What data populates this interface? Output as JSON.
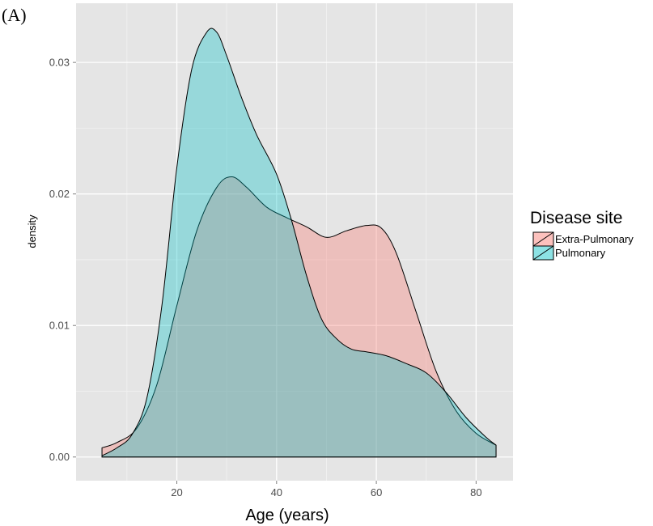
{
  "panel_label": "(A)",
  "chart_data": {
    "type": "area",
    "title": "",
    "xlabel": "Age (years)",
    "ylabel": "density",
    "xlim": [
      -0.2,
      87.4
    ],
    "ylim": [
      -0.0018,
      0.0345
    ],
    "x_ticks": [
      20,
      40,
      60,
      80
    ],
    "x_tick_labels": [
      "20",
      "40",
      "60",
      "80"
    ],
    "y_ticks": [
      0.0,
      0.01,
      0.02,
      0.03
    ],
    "y_tick_labels": [
      "0.00",
      "0.01",
      "0.02",
      "0.03"
    ],
    "grid": true,
    "legend": {
      "title": "Disease site",
      "position": "right"
    },
    "series": [
      {
        "name": "Extra-Pulmonary",
        "color": "#f8766d",
        "x": [
          5,
          8,
          12,
          16,
          20,
          24,
          28,
          31,
          34,
          38,
          42,
          46,
          50,
          54,
          58,
          61,
          64,
          68,
          72,
          76,
          80,
          84
        ],
        "y": [
          0.0007,
          0.0011,
          0.0022,
          0.0055,
          0.0115,
          0.0172,
          0.0205,
          0.0213,
          0.0205,
          0.019,
          0.0182,
          0.0175,
          0.0167,
          0.0172,
          0.0176,
          0.0174,
          0.0155,
          0.011,
          0.0065,
          0.0035,
          0.0018,
          0.0009
        ]
      },
      {
        "name": "Pulmonary",
        "color": "#00bfc4",
        "x": [
          5,
          8,
          11,
          14,
          17,
          20,
          23,
          26,
          28,
          30,
          33,
          36,
          40,
          43,
          46,
          49,
          52,
          55,
          58,
          62,
          66,
          70,
          74,
          78,
          82,
          84
        ],
        "y": [
          0.0001,
          0.0007,
          0.0017,
          0.0045,
          0.0115,
          0.022,
          0.0295,
          0.0323,
          0.0323,
          0.0305,
          0.0273,
          0.0245,
          0.0215,
          0.018,
          0.0138,
          0.0105,
          0.009,
          0.0082,
          0.008,
          0.0077,
          0.0071,
          0.0064,
          0.0049,
          0.003,
          0.0015,
          0.0009
        ]
      }
    ]
  }
}
